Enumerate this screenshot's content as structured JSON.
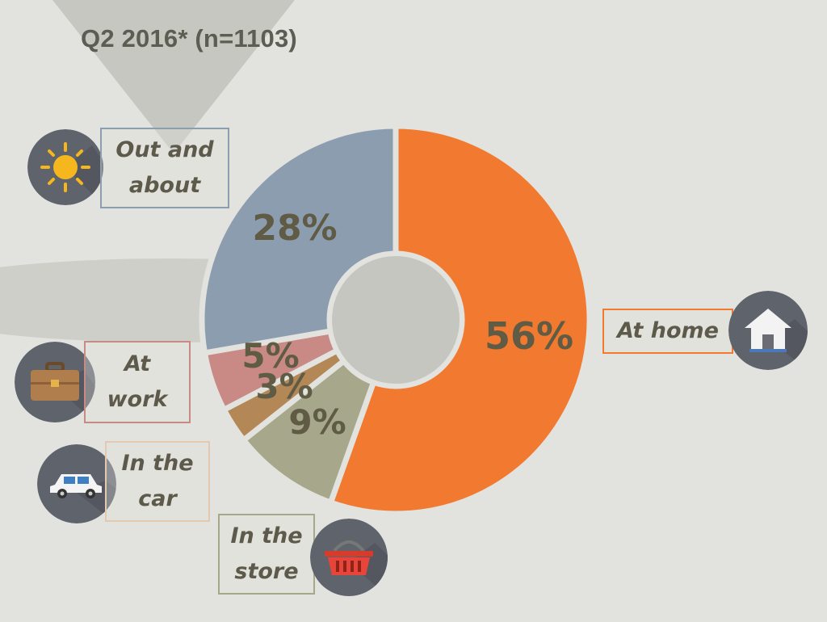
{
  "title": "Q2 2016* (n=1103)",
  "colors": {
    "background": "#e2e2de",
    "at_home": "#f17a30",
    "out_and_about": "#8c9db0",
    "at_work": "#c98a86",
    "in_the_car": "#b38756",
    "in_the_store": "#a7a88b",
    "percent_text": "#5f5b44",
    "icon_circle": "#5f636c"
  },
  "chart_data": {
    "type": "pie",
    "style": "donut",
    "title": "Q2 2016* (n=1103)",
    "slices": [
      {
        "label": "At home",
        "value": 56,
        "display": "56%",
        "color": "#f17a30",
        "icon": "house-icon"
      },
      {
        "label": "In the store",
        "value": 9,
        "display": "9%",
        "color": "#a7a88b",
        "icon": "shopping-basket-icon"
      },
      {
        "label": "In the car",
        "value": 3,
        "display": "3%",
        "color": "#b38756",
        "icon": "car-icon"
      },
      {
        "label": "At work",
        "value": 5,
        "display": "5%",
        "color": "#c98a86",
        "icon": "briefcase-icon"
      },
      {
        "label": "Out and about",
        "value": 28,
        "display": "28%",
        "color": "#8c9db0",
        "icon": "sun-icon"
      }
    ]
  },
  "labels": {
    "at_home": [
      "At home"
    ],
    "in_the_store": [
      "In the",
      "store"
    ],
    "in_the_car": [
      "In the",
      "car"
    ],
    "at_work": [
      "At",
      "work"
    ],
    "out_and_about": [
      "Out and",
      "about"
    ]
  }
}
